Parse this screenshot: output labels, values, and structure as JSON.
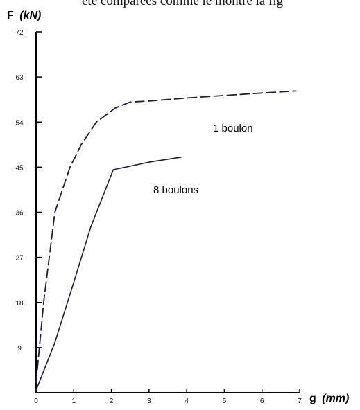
{
  "caption_fragment": "été comparées comme le montre la fig",
  "chart_data": {
    "type": "line",
    "y_title": "F",
    "y_unit": "(kN)",
    "x_title": "g",
    "x_unit": "(mm)",
    "xlim": [
      0,
      7
    ],
    "ylim": [
      0,
      72
    ],
    "x_ticks": [
      "0",
      "1",
      "2",
      "3",
      "4",
      "5",
      "6",
      "7"
    ],
    "y_ticks": [
      "9",
      "18",
      "27",
      "36",
      "45",
      "54",
      "63",
      "72"
    ],
    "series": [
      {
        "name": "1 boulon",
        "style": "dashed",
        "color": "#1c1c3a",
        "x": [
          0,
          0.2,
          0.5,
          0.9,
          1.2,
          1.6,
          2.1,
          2.5,
          3.0,
          4.0,
          5.0,
          6.0,
          6.9
        ],
        "y": [
          2,
          18,
          36,
          45,
          49.5,
          54,
          56.8,
          58,
          58.2,
          58.8,
          59.3,
          59.8,
          60.2
        ]
      },
      {
        "name": "8 boulons",
        "style": "solid",
        "color": "#1c1c3a",
        "x": [
          0,
          0.5,
          1.0,
          1.45,
          2.05,
          2.5,
          3.0,
          3.85
        ],
        "y": [
          0.5,
          10,
          22,
          33,
          44.5,
          45.2,
          46,
          47
        ]
      }
    ]
  }
}
